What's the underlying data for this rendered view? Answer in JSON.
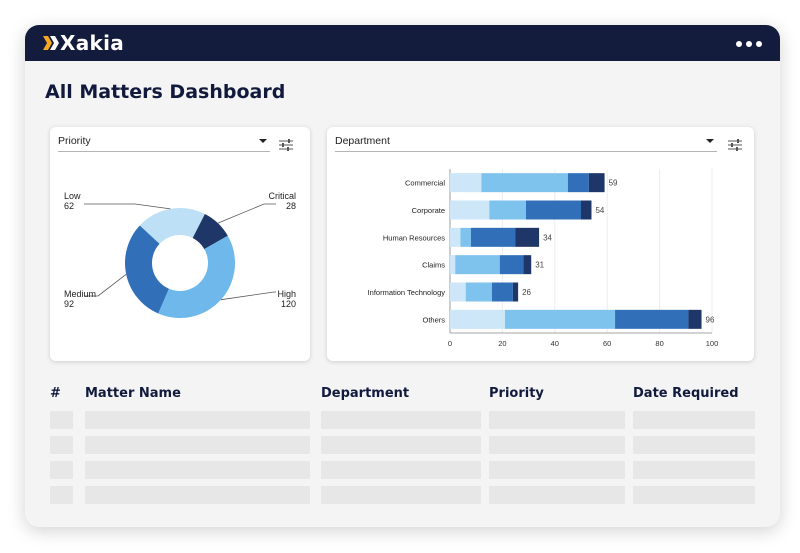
{
  "app": {
    "brand": "Xakia",
    "page_title": "All Matters Dashboard"
  },
  "icons": {
    "logo": "xakia-x-logo-icon",
    "more": "more-horizontal-icon",
    "filter": "filter-sliders-icon",
    "dropdown": "caret-down-icon"
  },
  "colors": {
    "topbar": "#141c3d",
    "accent": "#f5a623",
    "low": "#bde0f7",
    "critical": "#1f3668",
    "high": "#6fb8ec",
    "medium": "#3170b9"
  },
  "priority_panel": {
    "select_label": "Priority"
  },
  "department_panel": {
    "select_label": "Department"
  },
  "chart_data": [
    {
      "type": "pie",
      "variant": "donut",
      "labels": [
        "Low",
        "Critical",
        "High",
        "Medium"
      ],
      "values": [
        62,
        28,
        120,
        92
      ],
      "colors": [
        "#bde0f7",
        "#1f3668",
        "#6fb8ec",
        "#3170b9"
      ]
    },
    {
      "type": "bar",
      "orientation": "horizontal",
      "stacked": true,
      "categories": [
        "Commercial",
        "Corporate",
        "Human Resources",
        "Claims",
        "Information Technology",
        "Others"
      ],
      "series": [
        {
          "values": [
            12,
            15,
            4,
            2,
            6,
            21
          ],
          "color": "#cde6f8"
        },
        {
          "values": [
            33,
            14,
            4,
            17,
            10,
            42
          ],
          "color": "#7ec2ee"
        },
        {
          "values": [
            8,
            21,
            17,
            9,
            8,
            28
          ],
          "color": "#3170b9"
        },
        {
          "values": [
            6,
            4,
            9,
            3,
            2,
            5
          ],
          "color": "#1f3668"
        }
      ],
      "totals": [
        59,
        54,
        34,
        31,
        26,
        96
      ],
      "xticks": [
        0,
        20,
        40,
        60,
        80,
        100
      ],
      "xlim": [
        0,
        100
      ],
      "grid": true
    }
  ],
  "table": {
    "columns": [
      "#",
      "Matter Name",
      "Department",
      "Priority",
      "Date Required"
    ],
    "placeholder_rows": 4
  }
}
